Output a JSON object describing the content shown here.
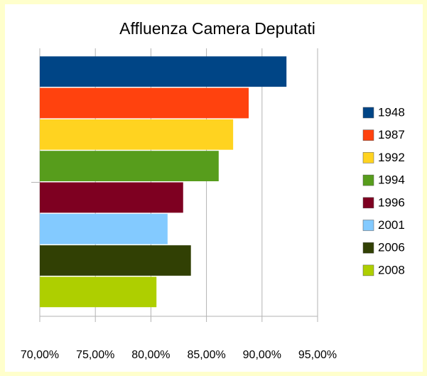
{
  "chart_data": {
    "type": "hbar",
    "title": "Affluenza Camera Deputati",
    "categories": [
      null
    ],
    "series": [
      {
        "name": "1948",
        "color": "#004586",
        "values": [
          92.2
        ]
      },
      {
        "name": "1987",
        "color": "#ff420e",
        "values": [
          88.8
        ]
      },
      {
        "name": "1992",
        "color": "#ffd320",
        "values": [
          87.4
        ]
      },
      {
        "name": "1994",
        "color": "#579d1c",
        "values": [
          86.1
        ]
      },
      {
        "name": "1996",
        "color": "#7e0021",
        "values": [
          82.9
        ]
      },
      {
        "name": "2001",
        "color": "#83caff",
        "values": [
          81.5
        ]
      },
      {
        "name": "2006",
        "color": "#314004",
        "values": [
          83.6
        ]
      },
      {
        "name": "2008",
        "color": "#aecf00",
        "values": [
          80.5
        ]
      }
    ],
    "xlim": [
      70,
      95
    ],
    "xticks": [
      {
        "value": 70,
        "label": "70,00%"
      },
      {
        "value": 75,
        "label": "75,00%"
      },
      {
        "value": 80,
        "label": "80,00%"
      },
      {
        "value": 85,
        "label": "85,00%"
      },
      {
        "value": 90,
        "label": "90,00%"
      },
      {
        "value": 95,
        "label": "95,00%"
      }
    ],
    "grid": true,
    "legend": "right"
  }
}
